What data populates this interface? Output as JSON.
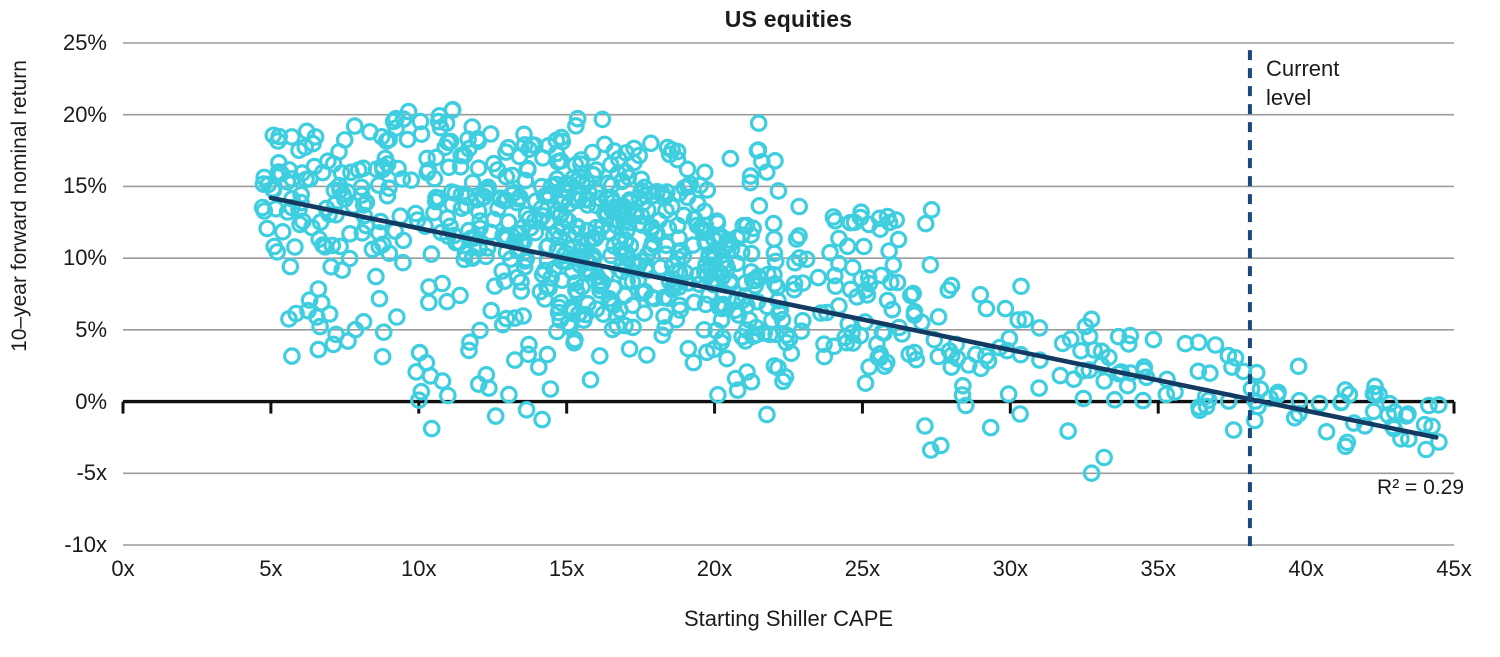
{
  "chart": {
    "title": "US equities",
    "x_axis_label": "Starting Shiller CAPE",
    "y_axis_label": "10–year forward nominal return",
    "current_level_line1": "Current",
    "current_level_line2": "level",
    "r_squared_label": "R² = 0.29"
  },
  "chart_data": {
    "type": "scatter",
    "title": "US equities",
    "xlabel": "Starting Shiller CAPE",
    "ylabel": "10-year forward nominal return",
    "xlim": [
      0,
      45
    ],
    "ylim": [
      -10,
      25
    ],
    "x_ticks": [
      {
        "value": 0,
        "label": "0x"
      },
      {
        "value": 5,
        "label": "5x"
      },
      {
        "value": 10,
        "label": "10x"
      },
      {
        "value": 15,
        "label": "15x"
      },
      {
        "value": 20,
        "label": "20x"
      },
      {
        "value": 25,
        "label": "25x"
      },
      {
        "value": 30,
        "label": "30x"
      },
      {
        "value": 35,
        "label": "35x"
      },
      {
        "value": 40,
        "label": "40x"
      },
      {
        "value": 45,
        "label": "45x"
      }
    ],
    "y_ticks": [
      {
        "value": 25,
        "label": "25%"
      },
      {
        "value": 20,
        "label": "20%"
      },
      {
        "value": 15,
        "label": "15%"
      },
      {
        "value": 10,
        "label": "10%"
      },
      {
        "value": 5,
        "label": "5%"
      },
      {
        "value": 0,
        "label": "0%"
      },
      {
        "value": -5,
        "label": "-5x"
      },
      {
        "value": -10,
        "label": "-10x"
      }
    ],
    "grid": "horizontal",
    "legend": "none",
    "r_squared": 0.29,
    "trend_line": {
      "x1": 5.0,
      "y1": 14.2,
      "x2": 44.4,
      "y2": -2.5,
      "intercept": 16.32,
      "slope": -0.4239
    },
    "current_level_line": {
      "x": 38.1,
      "style": "dashed",
      "y_from": 24.5,
      "y_to": -10.4,
      "label": "Current level"
    },
    "scatter": {
      "n_points_approx": 939,
      "note": "individual monthly observations estimated from point cloud; synthesized from cluster distributions below",
      "seed": 20240615,
      "marker_radius_px": 7.2,
      "marker_stroke_px": 3.2,
      "clusters": [
        {
          "n": 100,
          "x_range": [
            4.7,
            9.3
          ],
          "y_mode": "normal",
          "y_center": 14.6,
          "y_sd": 2.6,
          "y_clip": [
            8.5,
            19.6
          ]
        },
        {
          "n": 22,
          "x_range": [
            5.5,
            9.5
          ],
          "y_mode": "uniform",
          "y_range": [
            1.8,
            10.5
          ]
        },
        {
          "n": 26,
          "x_range": [
            9.5,
            15.0
          ],
          "y_mode": "uniform",
          "y_range": [
            -2.0,
            5.0
          ]
        },
        {
          "n": 14,
          "x_range": [
            8.8,
            11.2
          ],
          "y_mode": "normal",
          "y_center": 19.6,
          "y_sd": 0.8,
          "y_clip": [
            17.9,
            21.0
          ]
        },
        {
          "n": 520,
          "x_range": [
            9.0,
            23.5
          ],
          "x_dist": "triangular",
          "y_mode": "trend",
          "y_offset": 1.8,
          "y_sd": 3.9,
          "y_clip": [
            -1.5,
            19.8
          ]
        },
        {
          "n": 130,
          "x_range": [
            19.5,
            28.5
          ],
          "y_mode": "trend",
          "y_offset": 0.5,
          "y_sd": 3.6,
          "y_clip": [
            -4.6,
            14.0
          ]
        },
        {
          "n": 12,
          "x_range": [
            24.0,
            27.6
          ],
          "y_mode": "uniform",
          "y_range": [
            12.3,
            13.4
          ]
        },
        {
          "n": 45,
          "x_range": [
            28.5,
            34.0
          ],
          "y_mode": "trend",
          "y_offset": 0.0,
          "y_sd": 2.6,
          "y_clip": [
            -5.1,
            8.2
          ]
        },
        {
          "n": 28,
          "x_range": [
            34.0,
            38.2
          ],
          "y_mode": "trend",
          "y_offset": 1.2,
          "y_sd": 1.6,
          "y_clip": [
            -2.6,
            4.6
          ]
        },
        {
          "n": 42,
          "x_range": [
            38.2,
            44.6
          ],
          "y_mode": "trend",
          "y_offset": 0.4,
          "y_sd": 1.3,
          "y_clip": [
            -4.0,
            2.6
          ]
        }
      ]
    },
    "colors": {
      "marker": "#3FCEE0",
      "trend": "#133A63",
      "dashed": "#17497B",
      "grid": "#9B9B9B",
      "axis": "#111111",
      "text": "#1B1B1B",
      "background": "#FFFFFF"
    }
  }
}
